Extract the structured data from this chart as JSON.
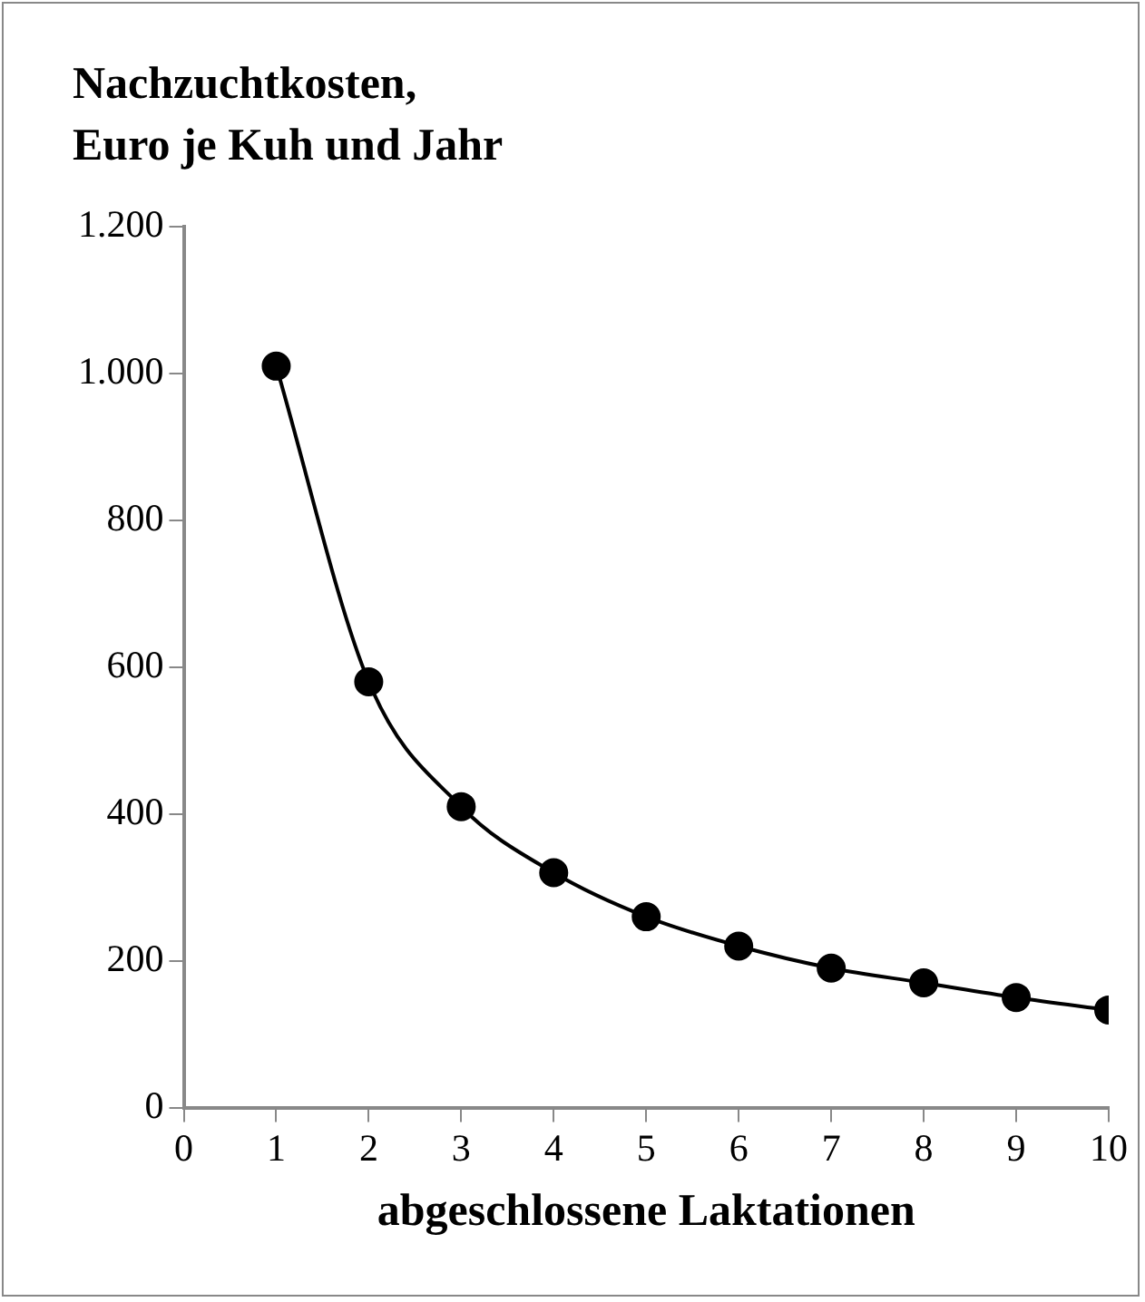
{
  "chart_data": {
    "type": "line",
    "title": "Nachzuchtkosten,\nEuro je Kuh und Jahr",
    "xlabel": "abgeschlossene Laktationen",
    "x": [
      1,
      2,
      3,
      4,
      5,
      6,
      7,
      8,
      9,
      10
    ],
    "series": [
      {
        "color": "#000000",
        "values": [
          1010,
          580,
          410,
          320,
          260,
          220,
          190,
          170,
          150,
          133
        ]
      }
    ],
    "xlim": [
      0,
      10
    ],
    "xticks": [
      0,
      1,
      2,
      3,
      4,
      5,
      6,
      7,
      8,
      9,
      10
    ],
    "ylim": [
      0,
      1200
    ],
    "yticks": [
      {
        "value": 0,
        "label": "0"
      },
      {
        "value": 200,
        "label": "200"
      },
      {
        "value": 400,
        "label": "400"
      },
      {
        "value": 600,
        "label": "600"
      },
      {
        "value": 800,
        "label": "800"
      },
      {
        "value": 1000,
        "label": "1.000"
      },
      {
        "value": 1200,
        "label": "1.200"
      }
    ],
    "grid": false,
    "legend": false,
    "marker": "circle",
    "line_style": "solid"
  }
}
